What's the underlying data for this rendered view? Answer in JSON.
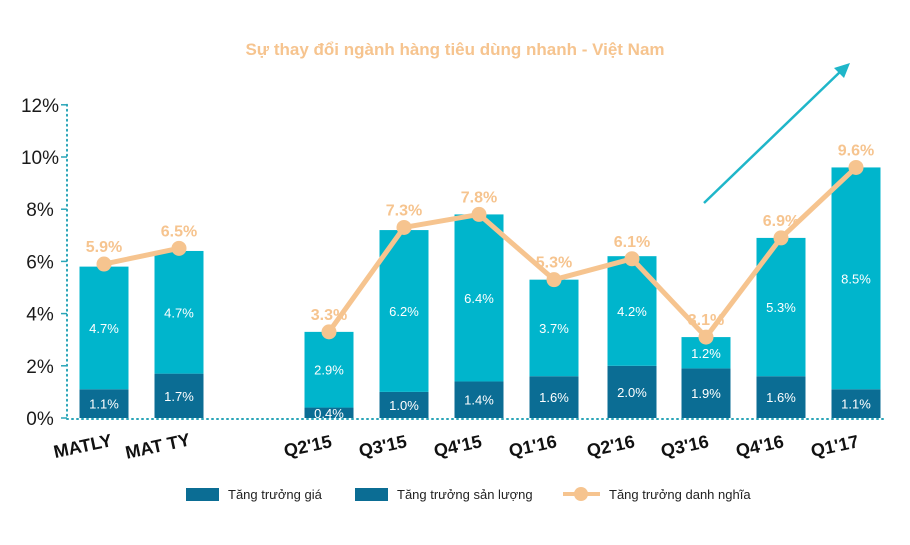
{
  "chart_data": {
    "type": "bar",
    "stacked": true,
    "title": "Sự thay đổi ngành hàng tiêu dùng nhanh - Việt Nam",
    "categories": [
      "MATLY",
      "MAT TY",
      "Q2'15",
      "Q3'15",
      "Q4'15",
      "Q1'16",
      "Q2'16",
      "Q3'16",
      "Q4'16",
      "Q1'17"
    ],
    "series": [
      {
        "name": "Tăng trưởng sản lượng",
        "values": [
          1.1,
          1.7,
          0.4,
          1.0,
          1.4,
          1.6,
          2.0,
          1.9,
          1.6,
          1.1
        ],
        "labels": [
          "1.1%",
          "1.7%",
          "0.4%",
          "1.0%",
          "1.4%",
          "1.6%",
          "2.0%",
          "1.9%",
          "1.6%",
          "1.1%"
        ]
      },
      {
        "name": "Tăng trưởng giá",
        "values": [
          4.7,
          4.7,
          2.9,
          6.2,
          6.4,
          3.7,
          4.2,
          1.2,
          5.3,
          8.5
        ],
        "labels": [
          "4.7%",
          "4.7%",
          "2.9%",
          "6.2%",
          "6.4%",
          "3.7%",
          "4.2%",
          "1.2%",
          "5.3%",
          "8.5%"
        ]
      },
      {
        "name": "Tăng trưởng danh nghĩa",
        "type": "line",
        "values": [
          5.9,
          6.5,
          3.3,
          7.3,
          7.8,
          5.3,
          6.1,
          3.1,
          6.9,
          9.6
        ],
        "labels": [
          "5.9%",
          "6.5%",
          "3.3%",
          "7.3%",
          "7.8%",
          "5.3%",
          "6.1%",
          "3.1%",
          "6.9%",
          "9.6%"
        ]
      }
    ],
    "yticks": [
      "0%",
      "2%",
      "4%",
      "6%",
      "8%",
      "10%",
      "12%"
    ],
    "ylim": [
      0,
      12
    ],
    "legend": [
      {
        "label": "Tăng trưởng giá",
        "color": "#0b6d94"
      },
      {
        "label": "Tăng trưởng sản lượng",
        "color": "#0b6d94"
      },
      {
        "label": "Tăng trưởng danh nghĩa",
        "color": "#f6c48f"
      }
    ],
    "legend_position": "bottom",
    "colors": {
      "volume": "#0b6d94",
      "price": "#00b5cc",
      "nominal": "#f6c48f",
      "title": "#f6c48f",
      "arrow": "#1fb6c9",
      "axis": "#2aa5b8"
    }
  }
}
